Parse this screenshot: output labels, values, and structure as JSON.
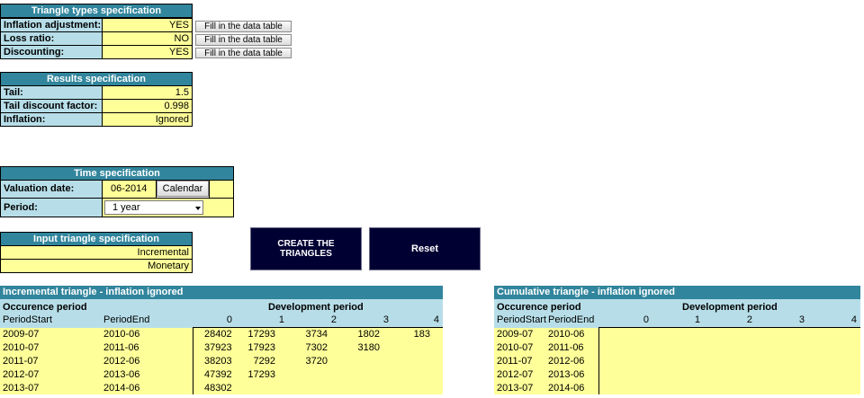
{
  "triangle_types": {
    "title": "Triangle types specification",
    "rows": [
      {
        "label": "Inflation adjustment:",
        "value": "YES",
        "button": "Fill in the data table"
      },
      {
        "label": "Loss ratio:",
        "value": "NO",
        "button": "Fill in the data table"
      },
      {
        "label": "Discounting:",
        "value": "YES",
        "button": "Fill in the data table"
      }
    ]
  },
  "results": {
    "title": "Results specification",
    "rows": [
      {
        "label": "Tail:",
        "value": "1.5"
      },
      {
        "label": "Tail discount factor:",
        "value": "0.998"
      },
      {
        "label": "Inflation:",
        "value": "Ignored"
      }
    ]
  },
  "time_spec": {
    "title": "Time specification",
    "valuation_label": "Valuation date:",
    "valuation_value": "06-2014",
    "calendar_button": "Calendar",
    "period_label": "Period:",
    "period_value": "1 year"
  },
  "input_spec": {
    "title": "Input triangle specification",
    "row1": "Incremental",
    "row2": "Monetary"
  },
  "buttons": {
    "create": "CREATE THE TRIANGLES",
    "reset": "Reset"
  },
  "incremental": {
    "title": "Incremental triangle - inflation ignored",
    "occ_label": "Occurence period",
    "dev_label": "Development period",
    "col_start": "PeriodStart",
    "col_end": "PeriodEnd",
    "dev_cols": [
      "0",
      "1",
      "2",
      "3",
      "4"
    ],
    "rows": [
      {
        "start": "2009-07",
        "end": "2010-06",
        "vals": [
          "28402",
          "17293",
          "3734",
          "1802",
          "183"
        ]
      },
      {
        "start": "2010-07",
        "end": "2011-06",
        "vals": [
          "37923",
          "17923",
          "7302",
          "3180",
          ""
        ]
      },
      {
        "start": "2011-07",
        "end": "2012-06",
        "vals": [
          "38203",
          "7292",
          "3720",
          "",
          ""
        ]
      },
      {
        "start": "2012-07",
        "end": "2013-06",
        "vals": [
          "47392",
          "17293",
          "",
          "",
          ""
        ]
      },
      {
        "start": "2013-07",
        "end": "2014-06",
        "vals": [
          "48302",
          "",
          "",
          "",
          ""
        ]
      }
    ]
  },
  "cumulative": {
    "title": "Cumulative triangle - inflation ignored",
    "occ_label": "Occurence period",
    "dev_label": "Development period",
    "col_start": "PeriodStart",
    "col_end": "PeriodEnd",
    "dev_cols": [
      "0",
      "1",
      "2",
      "3",
      "4"
    ],
    "rows": [
      {
        "start": "2009-07",
        "end": "2010-06"
      },
      {
        "start": "2010-07",
        "end": "2011-06"
      },
      {
        "start": "2011-07",
        "end": "2012-06"
      },
      {
        "start": "2012-07",
        "end": "2013-06"
      },
      {
        "start": "2013-07",
        "end": "2014-06"
      }
    ]
  },
  "colors": {
    "header_teal": "#31859c",
    "label_blue": "#b7dee8",
    "value_yellow": "#ffff99",
    "button_navy": "#000033"
  }
}
